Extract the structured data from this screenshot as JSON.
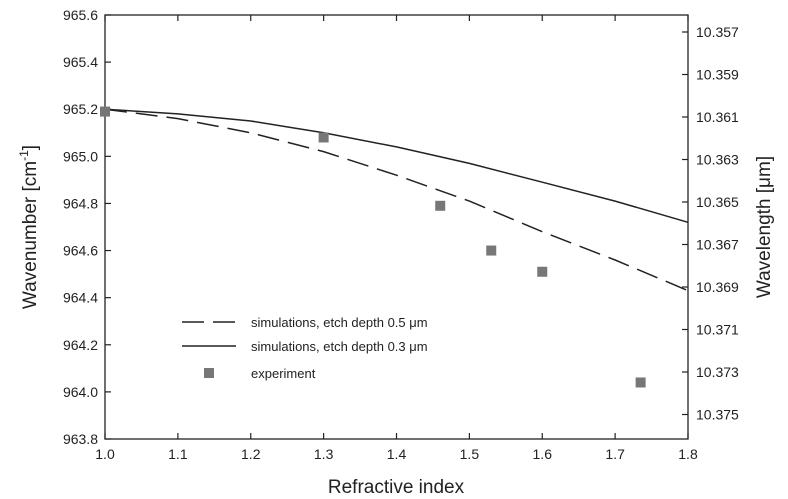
{
  "chart_data": {
    "type": "line",
    "xlabel": "Refractive index",
    "ylabel_left": "Wavenumber [cm",
    "ylabel_left_sup": "-1",
    "ylabel_left_end": "]",
    "ylabel_right": "Wavelength [μm]",
    "xlim": [
      1.0,
      1.8
    ],
    "ylim": [
      963.8,
      965.6
    ],
    "x_ticks": [
      1.0,
      1.1,
      1.2,
      1.3,
      1.4,
      1.5,
      1.6,
      1.7,
      1.8
    ],
    "x_tick_labels": [
      "1.0",
      "1.1",
      "1.2",
      "1.3",
      "1.4",
      "1.5",
      "1.6",
      "1.7",
      "1.8"
    ],
    "y_ticks": [
      963.8,
      964.0,
      964.2,
      964.4,
      964.6,
      964.8,
      965.0,
      965.2,
      965.4,
      965.6
    ],
    "y_tick_labels": [
      "963.8",
      "964.0",
      "964.2",
      "964.4",
      "964.6",
      "964.8",
      "965.0",
      "965.2",
      "965.4",
      "965.6"
    ],
    "y2_ticks": [
      10.357,
      10.359,
      10.361,
      10.363,
      10.365,
      10.367,
      10.369,
      10.371,
      10.373,
      10.375
    ],
    "y2_tick_labels": [
      "10.357",
      "10.359",
      "10.361",
      "10.363",
      "10.365",
      "10.367",
      "10.369",
      "10.371",
      "10.373",
      "10.375"
    ],
    "legend_position": "lower-left",
    "series": [
      {
        "name": "simulations, etch depth 0.5 μm",
        "style": "dashed",
        "x": [
          1.0,
          1.1,
          1.2,
          1.3,
          1.4,
          1.5,
          1.6,
          1.7,
          1.8
        ],
        "y": [
          965.2,
          965.16,
          965.1,
          965.02,
          964.92,
          964.81,
          964.68,
          964.56,
          964.43
        ]
      },
      {
        "name": "simulations, etch depth 0.3 μm",
        "style": "solid",
        "x": [
          1.0,
          1.1,
          1.2,
          1.3,
          1.4,
          1.5,
          1.6,
          1.7,
          1.8
        ],
        "y": [
          965.2,
          965.18,
          965.15,
          965.1,
          965.04,
          964.97,
          964.89,
          964.81,
          964.72
        ]
      },
      {
        "name": "experiment",
        "style": "markers",
        "x": [
          1.0,
          1.3,
          1.46,
          1.53,
          1.6,
          1.735
        ],
        "y": [
          965.19,
          965.08,
          964.79,
          964.6,
          964.51,
          964.04
        ]
      }
    ],
    "colors": {
      "line": "#222222",
      "marker": "#777777",
      "axis": "#222222"
    }
  }
}
